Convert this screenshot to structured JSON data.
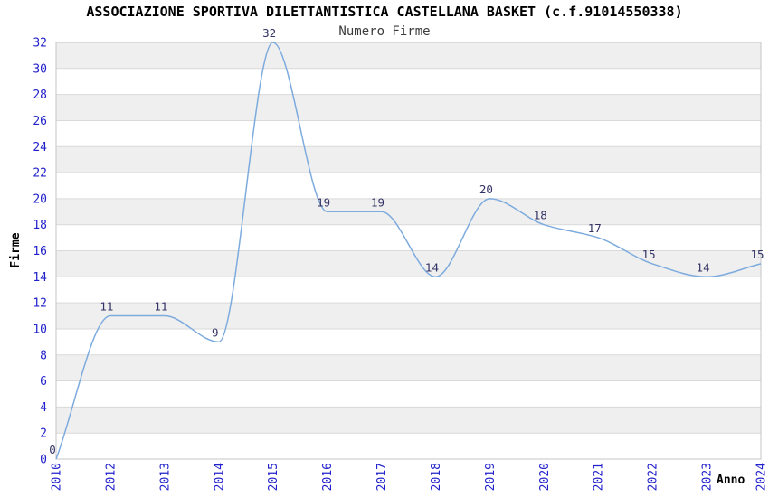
{
  "header": {
    "title": "ASSOCIAZIONE SPORTIVA DILETTANTISTICA CASTELLANA BASKET (c.f.91014550338)",
    "subtitle": "Numero Firme"
  },
  "chart_data": {
    "type": "line",
    "title": "ASSOCIAZIONE SPORTIVA DILETTANTISTICA CASTELLANA BASKET (c.f.91014550338)",
    "subtitle": "Numero Firme",
    "xlabel": "Anno",
    "ylabel": "Firme",
    "categories": [
      "2010",
      "2012",
      "2013",
      "2014",
      "2015",
      "2016",
      "2017",
      "2018",
      "2019",
      "2020",
      "2021",
      "2022",
      "2023",
      "2024"
    ],
    "values": [
      0,
      11,
      11,
      9,
      32,
      19,
      19,
      14,
      20,
      18,
      17,
      15,
      14,
      15
    ],
    "data_labels_shown": true,
    "ylim": [
      0,
      32
    ],
    "ytick_step": 2,
    "grid": "horizontal gridlines every 2 with alternating shaded bands",
    "legend": "none",
    "colors": {
      "line": "#7dabde",
      "tick_label": "#2222cc",
      "data_label": "#333366",
      "band_shade": "#efefef",
      "gridline": "#d9d9d9",
      "plot_border": "#c6c6c6",
      "title": "#000000",
      "subtitle": "#3c3c3c",
      "axis_title": "#000000",
      "background": "#ffffff"
    }
  }
}
